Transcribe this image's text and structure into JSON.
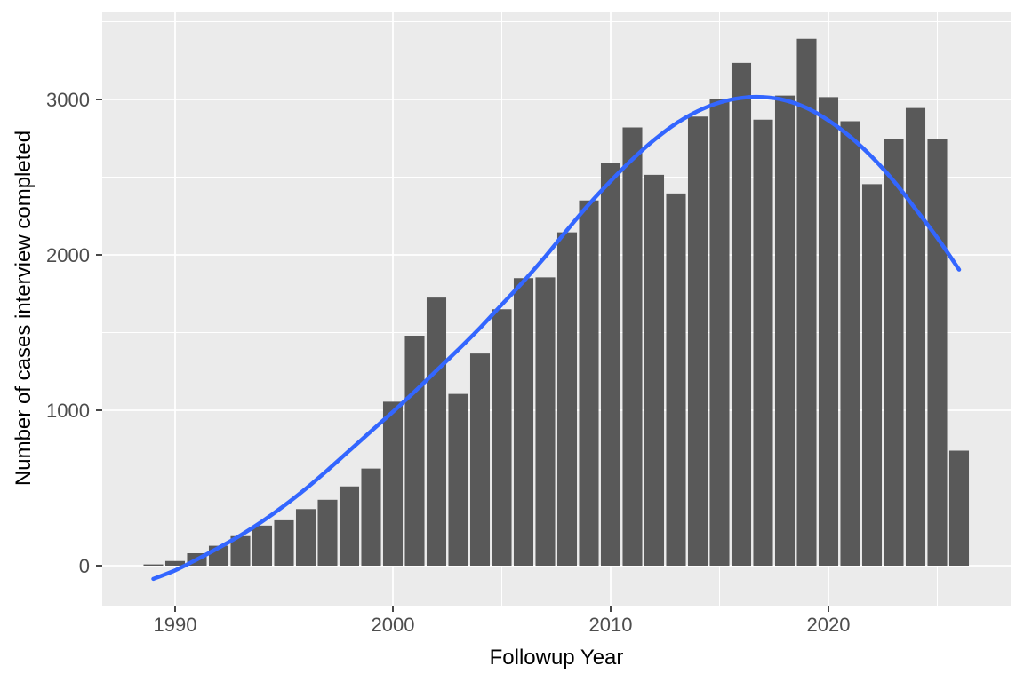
{
  "chart_data": {
    "type": "bar",
    "title": "",
    "xlabel": "Followup Year",
    "ylabel": "Number of cases interview completed",
    "categories": [
      1989,
      1990,
      1991,
      1992,
      1993,
      1994,
      1995,
      1996,
      1997,
      1998,
      1999,
      2000,
      2001,
      2002,
      2003,
      2004,
      2005,
      2006,
      2007,
      2008,
      2009,
      2010,
      2011,
      2012,
      2013,
      2014,
      2015,
      2016,
      2017,
      2018,
      2019,
      2020,
      2021,
      2022,
      2023,
      2024,
      2025,
      2026
    ],
    "values": [
      8,
      30,
      80,
      128,
      190,
      258,
      292,
      364,
      424,
      510,
      625,
      1055,
      1480,
      1725,
      1105,
      1365,
      1650,
      1850,
      1855,
      2145,
      2350,
      2590,
      2820,
      2515,
      2395,
      2890,
      3000,
      3235,
      2870,
      3025,
      3390,
      3015,
      2860,
      2455,
      2745,
      2945,
      2745,
      740
    ],
    "series": [
      {
        "name": "histogram-bars",
        "values": [
          8,
          30,
          80,
          128,
          190,
          258,
          292,
          364,
          424,
          510,
          625,
          1055,
          1480,
          1725,
          1105,
          1365,
          1650,
          1850,
          1855,
          2145,
          2350,
          2590,
          2820,
          2515,
          2395,
          2890,
          3000,
          3235,
          2870,
          3025,
          3390,
          3015,
          2860,
          2455,
          2745,
          2945,
          2745,
          740
        ]
      },
      {
        "name": "loess-smooth-line",
        "x": [
          1989,
          1990,
          1991,
          1992,
          1993,
          1994,
          1995,
          1996,
          1997,
          1998,
          1999,
          2000,
          2001,
          2002,
          2003,
          2004,
          2005,
          2006,
          2007,
          2008,
          2009,
          2010,
          2011,
          2012,
          2013,
          2014,
          2015,
          2016,
          2017,
          2018,
          2019,
          2020,
          2021,
          2022,
          2023,
          2024,
          2025,
          2026
        ],
        "values": [
          -85,
          -30,
          40,
          115,
          195,
          285,
          385,
          495,
          615,
          740,
          865,
          990,
          1120,
          1255,
          1390,
          1530,
          1680,
          1830,
          1990,
          2160,
          2325,
          2475,
          2615,
          2740,
          2845,
          2925,
          2980,
          3010,
          3015,
          2995,
          2945,
          2865,
          2760,
          2630,
          2475,
          2295,
          2110,
          1905
        ]
      }
    ],
    "x_ticks": [
      1990,
      2000,
      2010,
      2020
    ],
    "y_ticks": [
      0,
      1000,
      2000,
      3000
    ],
    "x_minor_ticks": [
      1995,
      2005,
      2015,
      2025
    ],
    "y_minor_ticks": [
      500,
      1500,
      2500,
      3500
    ],
    "xlim": [
      1986.65,
      2028.35
    ],
    "ylim": [
      -257,
      3566
    ],
    "grid": "major+minor, white on gray panel",
    "legend": false,
    "bar_width_fraction": 0.9,
    "colors": {
      "bar_fill": "#595959",
      "smooth_line": "#3366FF",
      "panel_background": "#EBEBEB",
      "gridline": "#FFFFFF",
      "tick_mark": "#333333",
      "tick_label_text": "#4D4D4D",
      "axis_title_text": "#000000",
      "outer_background": "#FFFFFF"
    }
  }
}
